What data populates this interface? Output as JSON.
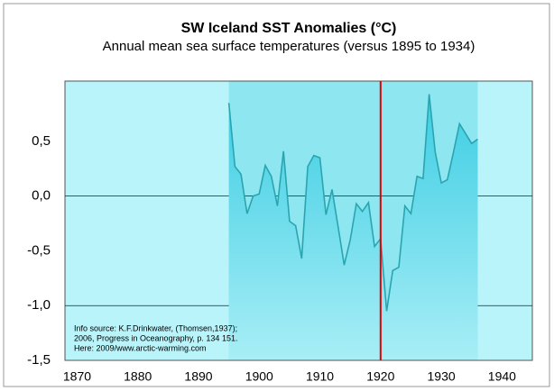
{
  "chart_data": {
    "type": "line",
    "title": "SW Iceland SST Anomalies (°C)",
    "subtitle": "Annual mean sea surface temperatures (versus 1895 to 1934)",
    "x": [
      1895,
      1896,
      1897,
      1898,
      1899,
      1900,
      1901,
      1902,
      1903,
      1904,
      1905,
      1906,
      1907,
      1908,
      1909,
      1910,
      1911,
      1912,
      1913,
      1914,
      1915,
      1916,
      1917,
      1918,
      1919,
      1920,
      1921,
      1922,
      1923,
      1924,
      1925,
      1926,
      1927,
      1928,
      1929,
      1930,
      1931,
      1932,
      1933,
      1934,
      1935,
      1936
    ],
    "series": [
      {
        "color": "#2aa5b0",
        "values": [
          0.85,
          0.27,
          0.2,
          -0.16,
          0.0,
          0.02,
          0.28,
          0.18,
          -0.09,
          0.41,
          -0.23,
          -0.27,
          -0.57,
          0.27,
          0.37,
          0.35,
          -0.17,
          0.06,
          -0.28,
          -0.63,
          -0.4,
          -0.07,
          -0.14,
          -0.06,
          -0.46,
          -0.39,
          -1.05,
          -0.68,
          -0.65,
          -0.09,
          -0.16,
          0.18,
          0.16,
          0.93,
          0.4,
          0.12,
          0.15,
          0.4,
          0.66,
          0.57,
          0.48,
          0.52
        ]
      }
    ],
    "xlim": [
      1868,
      1945
    ],
    "xticks": [
      1870,
      1880,
      1890,
      1900,
      1910,
      1920,
      1930,
      1940
    ],
    "ylim": [
      -1.5,
      1.05
    ],
    "yticks": [
      {
        "value": -1.5,
        "label": "-1,5"
      },
      {
        "value": -1.0,
        "label": "-1,0"
      },
      {
        "value": -0.5,
        "label": "-0,5"
      },
      {
        "value": 0.0,
        "label": "0,0"
      },
      {
        "value": 0.5,
        "label": "0,5"
      }
    ],
    "grid_lines": [
      0.0,
      -1.0
    ],
    "highlight_xrange": [
      1895,
      1936
    ],
    "vline": {
      "x": 1920,
      "color": "#e00000"
    },
    "annotation": [
      "Info source: K.F.Drinkwater, (Thomsen,1937);",
      "2006, Progress in Oceanography, p. 134 151.",
      "Here: 2009/www.arctic-warming.com"
    ]
  }
}
